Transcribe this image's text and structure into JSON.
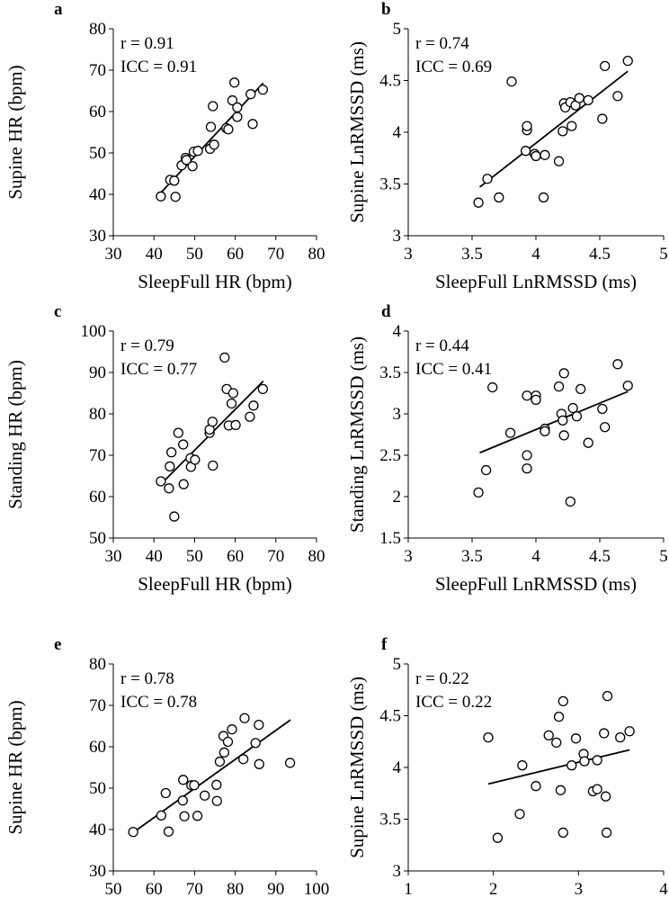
{
  "chart_data": [
    {
      "panel": "a",
      "type": "scatter",
      "xlabel": "SleepFull HR (bpm)",
      "ylabel": "Supine HR (bpm)",
      "xlim": [
        30,
        80
      ],
      "ylim": [
        30,
        80
      ],
      "xticks": [
        30,
        40,
        50,
        60,
        70,
        80
      ],
      "yticks": [
        30,
        40,
        50,
        60,
        70,
        80
      ],
      "annotations": [
        "r = 0.91",
        "ICC = 0.91"
      ],
      "trendline": {
        "x": [
          41.8,
          66.9
        ],
        "y": [
          40.5,
          66.9
        ]
      },
      "points": [
        [
          41.7,
          39.5
        ],
        [
          44.0,
          43.5
        ],
        [
          45.0,
          43.3
        ],
        [
          45.3,
          39.4
        ],
        [
          46.8,
          47.0
        ],
        [
          47.8,
          48.8
        ],
        [
          48.0,
          48.3
        ],
        [
          49.8,
          50.3
        ],
        [
          49.5,
          46.8
        ],
        [
          50.8,
          50.5
        ],
        [
          53.8,
          51.0
        ],
        [
          54.0,
          56.3
        ],
        [
          54.5,
          61.3
        ],
        [
          54.8,
          52.0
        ],
        [
          57.8,
          56.0
        ],
        [
          58.3,
          55.7
        ],
        [
          59.3,
          62.7
        ],
        [
          59.8,
          67.0
        ],
        [
          60.5,
          61.0
        ],
        [
          60.5,
          58.7
        ],
        [
          63.8,
          64.2
        ],
        [
          64.3,
          57.0
        ],
        [
          66.8,
          65.3
        ]
      ]
    },
    {
      "panel": "b",
      "type": "scatter",
      "xlabel": "SleepFull LnRMSSD (ms)",
      "ylabel": "Supine LnRMSSD (ms)",
      "xlim": [
        3,
        5
      ],
      "ylim": [
        3,
        5
      ],
      "xticks": [
        3,
        3.5,
        4,
        4.5,
        5
      ],
      "yticks": [
        3,
        3.5,
        4,
        4.5,
        5
      ],
      "annotations": [
        "r = 0.74",
        "ICC = 0.69"
      ],
      "trendline": {
        "x": [
          3.56,
          4.72
        ],
        "y": [
          3.47,
          4.59
        ]
      },
      "points": [
        [
          3.55,
          3.32
        ],
        [
          3.62,
          3.55
        ],
        [
          3.71,
          3.37
        ],
        [
          3.81,
          4.49
        ],
        [
          3.92,
          3.82
        ],
        [
          3.93,
          4.02
        ],
        [
          3.93,
          4.06
        ],
        [
          3.99,
          3.79
        ],
        [
          4.0,
          3.77
        ],
        [
          4.06,
          3.37
        ],
        [
          4.07,
          3.78
        ],
        [
          4.18,
          3.72
        ],
        [
          4.21,
          4.01
        ],
        [
          4.22,
          4.28
        ],
        [
          4.23,
          4.24
        ],
        [
          4.27,
          4.29
        ],
        [
          4.28,
          4.06
        ],
        [
          4.31,
          4.26
        ],
        [
          4.34,
          4.33
        ],
        [
          4.41,
          4.31
        ],
        [
          4.52,
          4.13
        ],
        [
          4.54,
          4.64
        ],
        [
          4.64,
          4.35
        ],
        [
          4.72,
          4.69
        ]
      ]
    },
    {
      "panel": "c",
      "type": "scatter",
      "xlabel": "SleepFull HR (bpm)",
      "ylabel": "Standing HR (bpm)",
      "xlim": [
        30,
        80
      ],
      "ylim": [
        50,
        100
      ],
      "xticks": [
        30,
        40,
        50,
        60,
        70,
        80
      ],
      "yticks": [
        50,
        60,
        70,
        80,
        90,
        100
      ],
      "annotations": [
        "r = 0.79",
        "ICC = 0.77"
      ],
      "trendline": {
        "x": [
          41.8,
          66.9
        ],
        "y": [
          63.1,
          87.9
        ]
      },
      "points": [
        [
          41.7,
          63.7
        ],
        [
          43.7,
          62.0
        ],
        [
          43.9,
          67.3
        ],
        [
          44.3,
          70.7
        ],
        [
          45.0,
          55.2
        ],
        [
          46.0,
          75.4
        ],
        [
          47.2,
          72.6
        ],
        [
          47.3,
          63.0
        ],
        [
          49.0,
          69.3
        ],
        [
          49.1,
          67.2
        ],
        [
          50.1,
          68.9
        ],
        [
          53.7,
          75.4
        ],
        [
          53.7,
          76.2
        ],
        [
          54.4,
          78.1
        ],
        [
          54.5,
          67.5
        ],
        [
          57.4,
          93.6
        ],
        [
          57.9,
          86.0
        ],
        [
          58.4,
          77.2
        ],
        [
          59.1,
          82.5
        ],
        [
          59.5,
          85.0
        ],
        [
          60.1,
          77.3
        ],
        [
          63.6,
          79.3
        ],
        [
          64.5,
          82.0
        ],
        [
          66.8,
          86.0
        ]
      ]
    },
    {
      "panel": "d",
      "type": "scatter",
      "xlabel": "SleepFull LnRMSSD (ms)",
      "ylabel": "Standing LnRMSSD (ms)",
      "xlim": [
        3,
        5
      ],
      "ylim": [
        1.5,
        4
      ],
      "xticks": [
        3,
        3.5,
        4,
        4.5,
        5
      ],
      "yticks": [
        1.5,
        2,
        2.5,
        3,
        3.5,
        4
      ],
      "annotations": [
        "r = 0.44",
        "ICC = 0.41"
      ],
      "trendline": {
        "x": [
          3.56,
          4.72
        ],
        "y": [
          2.53,
          3.27
        ]
      },
      "points": [
        [
          3.55,
          2.05
        ],
        [
          3.61,
          2.32
        ],
        [
          3.66,
          3.32
        ],
        [
          3.8,
          2.77
        ],
        [
          3.93,
          3.22
        ],
        [
          3.93,
          2.5
        ],
        [
          3.93,
          2.34
        ],
        [
          4.0,
          3.22
        ],
        [
          4.0,
          3.17
        ],
        [
          4.07,
          2.82
        ],
        [
          4.07,
          2.79
        ],
        [
          4.18,
          3.33
        ],
        [
          4.2,
          3.0
        ],
        [
          4.21,
          2.92
        ],
        [
          4.22,
          3.49
        ],
        [
          4.22,
          2.74
        ],
        [
          4.27,
          1.94
        ],
        [
          4.29,
          3.07
        ],
        [
          4.32,
          2.97
        ],
        [
          4.35,
          3.3
        ],
        [
          4.41,
          2.65
        ],
        [
          4.52,
          3.06
        ],
        [
          4.54,
          2.84
        ],
        [
          4.64,
          3.6
        ],
        [
          4.72,
          3.34
        ]
      ]
    },
    {
      "panel": "e",
      "type": "scatter",
      "xlabel": "Standing HR (bpm)",
      "ylabel": "Supine HR (bpm)",
      "xlim": [
        50,
        100
      ],
      "ylim": [
        30,
        80
      ],
      "xticks": [
        50,
        60,
        70,
        80,
        90,
        100
      ],
      "yticks": [
        30,
        40,
        50,
        60,
        70,
        80
      ],
      "annotations": [
        "r = 0.78",
        "ICC = 0.78"
      ],
      "trendline": {
        "x": [
          54.9,
          93.6
        ],
        "y": [
          39.3,
          66.5
        ]
      },
      "points": [
        [
          54.9,
          39.4
        ],
        [
          61.8,
          43.4
        ],
        [
          62.9,
          48.8
        ],
        [
          63.6,
          39.5
        ],
        [
          67.1,
          47.0
        ],
        [
          67.2,
          52.0
        ],
        [
          67.5,
          43.2
        ],
        [
          69.2,
          50.7
        ],
        [
          69.9,
          50.7
        ],
        [
          70.7,
          43.3
        ],
        [
          72.5,
          48.2
        ],
        [
          75.4,
          50.8
        ],
        [
          75.5,
          46.9
        ],
        [
          76.2,
          56.4
        ],
        [
          77.1,
          62.6
        ],
        [
          77.3,
          58.6
        ],
        [
          78.2,
          61.2
        ],
        [
          79.2,
          64.2
        ],
        [
          82.0,
          57.0
        ],
        [
          82.3,
          66.9
        ],
        [
          85.0,
          60.9
        ],
        [
          85.8,
          65.3
        ],
        [
          85.9,
          55.8
        ],
        [
          93.5,
          56.1
        ]
      ]
    },
    {
      "panel": "f",
      "type": "scatter",
      "xlabel": "Standing LnRMSSD (ms)",
      "ylabel": "Supine LnRMSSD (ms)",
      "xlim": [
        1,
        4
      ],
      "ylim": [
        3,
        5
      ],
      "xticks": [
        1,
        2,
        3,
        4
      ],
      "yticks": [
        3,
        3.5,
        4,
        4.5,
        5
      ],
      "annotations": [
        "r = 0.22",
        "ICC = 0.22"
      ],
      "trendline": {
        "x": [
          1.94,
          3.6
        ],
        "y": [
          3.84,
          4.17
        ]
      },
      "points": [
        [
          1.94,
          4.29
        ],
        [
          2.05,
          3.32
        ],
        [
          2.31,
          3.55
        ],
        [
          2.34,
          4.02
        ],
        [
          2.5,
          3.82
        ],
        [
          2.65,
          4.31
        ],
        [
          2.74,
          4.24
        ],
        [
          2.77,
          4.49
        ],
        [
          2.79,
          3.78
        ],
        [
          2.82,
          4.64
        ],
        [
          2.82,
          3.37
        ],
        [
          2.92,
          4.02
        ],
        [
          2.97,
          4.28
        ],
        [
          3.06,
          4.13
        ],
        [
          3.07,
          4.06
        ],
        [
          3.17,
          3.77
        ],
        [
          3.22,
          4.07
        ],
        [
          3.22,
          3.79
        ],
        [
          3.3,
          4.33
        ],
        [
          3.32,
          3.72
        ],
        [
          3.33,
          3.37
        ],
        [
          3.34,
          4.69
        ],
        [
          3.49,
          4.29
        ],
        [
          3.6,
          4.35
        ]
      ]
    }
  ]
}
